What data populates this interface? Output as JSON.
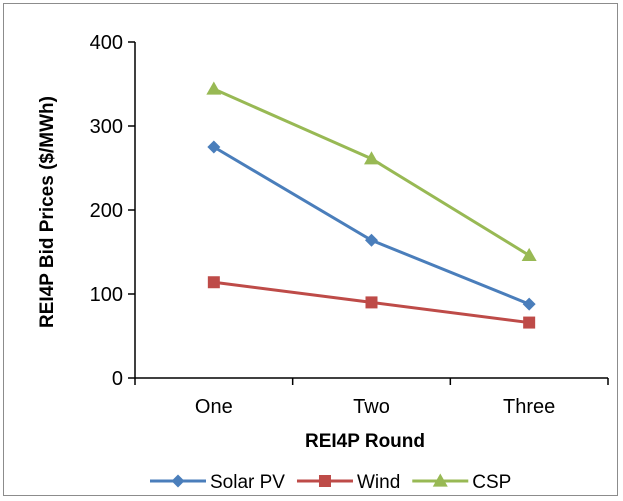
{
  "chart_data": {
    "type": "line",
    "title": "",
    "xlabel": "REI4P Round",
    "ylabel": "REI4P Bid Prices ($/MWh)",
    "categories": [
      "One",
      "Two",
      "Three"
    ],
    "ylim": [
      0,
      400
    ],
    "yticks": [
      0,
      100,
      200,
      300,
      400
    ],
    "grid": false,
    "legend_position": "bottom",
    "series": [
      {
        "name": "Solar PV",
        "values": [
          275,
          164,
          88
        ],
        "color": "#4a7ebb",
        "marker": "diamond"
      },
      {
        "name": "Wind",
        "values": [
          114,
          90,
          66
        ],
        "color": "#be4b48",
        "marker": "square"
      },
      {
        "name": "CSP",
        "values": [
          344,
          261,
          146
        ],
        "color": "#98b954",
        "marker": "triangle"
      }
    ]
  }
}
